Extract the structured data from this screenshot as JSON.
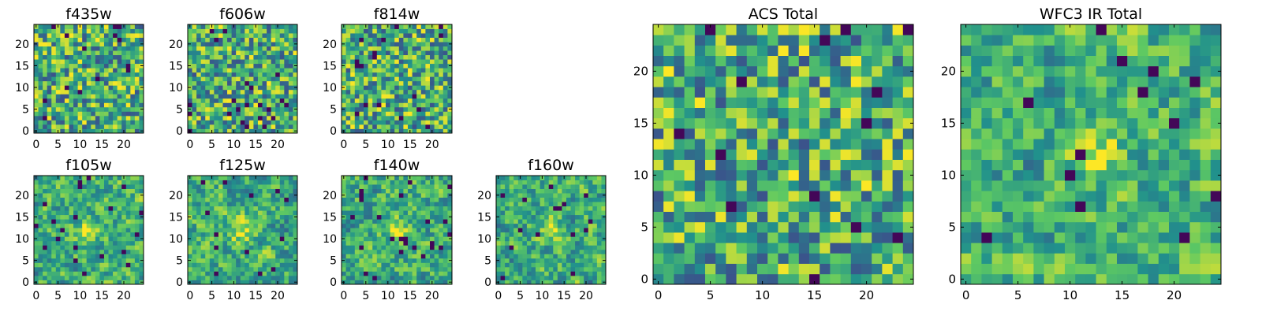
{
  "chart_data": {
    "type": "heatmap",
    "colormap": "viridis",
    "colormap_stops": [
      "#440154",
      "#3b528b",
      "#21918c",
      "#5ec962",
      "#fde725"
    ],
    "grid_size": 25,
    "panels": [
      {
        "title": "f435w",
        "xticks": [
          "0",
          "5",
          "10",
          "15",
          "20"
        ],
        "yticks": [
          "0",
          "5",
          "10",
          "15",
          "20"
        ],
        "xlim": [
          -0.5,
          24.5
        ],
        "ylim": [
          -0.5,
          24.5
        ],
        "seed": 11,
        "smooth": 0,
        "bright_spot": null
      },
      {
        "title": "f606w",
        "xticks": [
          "0",
          "5",
          "10",
          "15",
          "20"
        ],
        "yticks": [
          "0",
          "5",
          "10",
          "15",
          "20"
        ],
        "xlim": [
          -0.5,
          24.5
        ],
        "ylim": [
          -0.5,
          24.5
        ],
        "seed": 23,
        "smooth": 0,
        "bright_spot": null
      },
      {
        "title": "f814w",
        "xticks": [
          "0",
          "5",
          "10",
          "15",
          "20"
        ],
        "yticks": [
          "0",
          "5",
          "10",
          "15",
          "20"
        ],
        "xlim": [
          -0.5,
          24.5
        ],
        "ylim": [
          -0.5,
          24.5
        ],
        "seed": 37,
        "smooth": 0,
        "bright_spot": null
      },
      {
        "title": "f105w",
        "xticks": [
          "0",
          "5",
          "10",
          "15",
          "20"
        ],
        "yticks": [
          "0",
          "5",
          "10",
          "15",
          "20"
        ],
        "xlim": [
          -0.5,
          24.5
        ],
        "ylim": [
          -0.5,
          24.5
        ],
        "seed": 41,
        "smooth": 1,
        "bright_spot": [
          12,
          12
        ]
      },
      {
        "title": "f125w",
        "xticks": [
          "0",
          "5",
          "10",
          "15",
          "20"
        ],
        "yticks": [
          "0",
          "5",
          "10",
          "15",
          "20"
        ],
        "xlim": [
          -0.5,
          24.5
        ],
        "ylim": [
          -0.5,
          24.5
        ],
        "seed": 53,
        "smooth": 1,
        "bright_spot": [
          12,
          12
        ]
      },
      {
        "title": "f140w",
        "xticks": [
          "0",
          "5",
          "10",
          "15",
          "20"
        ],
        "yticks": [
          "0",
          "5",
          "10",
          "15",
          "20"
        ],
        "xlim": [
          -0.5,
          24.5
        ],
        "ylim": [
          -0.5,
          24.5
        ],
        "seed": 67,
        "smooth": 1,
        "bright_spot": [
          12,
          12
        ]
      },
      {
        "title": "f160w",
        "xticks": [
          "0",
          "5",
          "10",
          "15",
          "20"
        ],
        "yticks": [
          "0",
          "5",
          "10",
          "15",
          "20"
        ],
        "xlim": [
          -0.5,
          24.5
        ],
        "ylim": [
          -0.5,
          24.5
        ],
        "seed": 79,
        "smooth": 1,
        "bright_spot": [
          12,
          12
        ]
      },
      {
        "title": "ACS Total",
        "xticks": [
          "0",
          "5",
          "10",
          "15",
          "20"
        ],
        "yticks": [
          "0",
          "5",
          "10",
          "15",
          "20"
        ],
        "xlim": [
          -0.5,
          24.5
        ],
        "ylim": [
          -0.5,
          24.5
        ],
        "seed": 91,
        "smooth": 0,
        "bright_spot": null
      },
      {
        "title": "WFC3 IR Total",
        "xticks": [
          "0",
          "5",
          "10",
          "15",
          "20"
        ],
        "yticks": [
          "0",
          "5",
          "10",
          "15",
          "20"
        ],
        "xlim": [
          -0.5,
          24.5
        ],
        "ylim": [
          -0.5,
          24.5
        ],
        "seed": 103,
        "smooth": 1,
        "bright_spot": [
          12,
          12
        ]
      }
    ]
  }
}
